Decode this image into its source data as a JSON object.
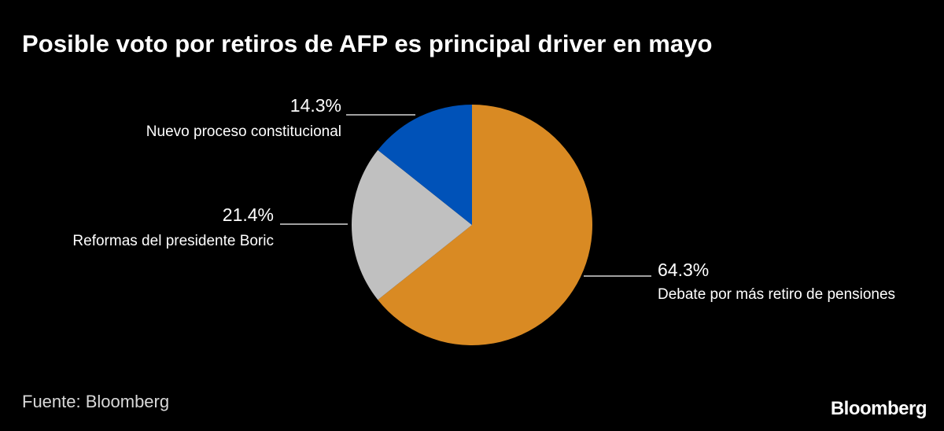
{
  "title": "Posible voto por retiros de AFP es principal driver en mayo",
  "source": "Fuente: Bloomberg",
  "logo": "Bloomberg",
  "chart_data": {
    "type": "pie",
    "title": "Posible voto por retiros de AFP es principal driver en mayo",
    "slices": [
      {
        "label": "Debate por más retiro de pensiones",
        "value": 64.3,
        "value_label": "64.3%",
        "color": "#d98a23"
      },
      {
        "label": "Reformas del presidente Boric",
        "value": 21.4,
        "value_label": "21.4%",
        "color": "#c0c0c0"
      },
      {
        "label": "Nuevo proceso constitucional",
        "value": 14.3,
        "value_label": "14.3%",
        "color": "#0052b8"
      }
    ]
  }
}
